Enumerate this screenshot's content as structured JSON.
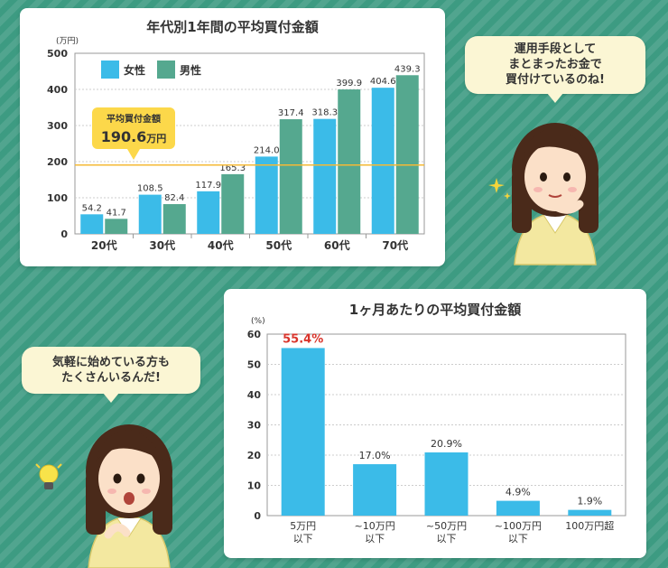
{
  "bubbles": {
    "top_right": [
      "運用手段として",
      "まとまったお金で",
      "買付けているのね!"
    ],
    "bottom_left": [
      "気軽に始めている方も",
      "たくさんいるんだ!"
    ]
  },
  "chart_data": [
    {
      "type": "bar",
      "title": "年代別1年間の平均買付金額",
      "ylabel": "(万円)",
      "categories": [
        "20代",
        "30代",
        "40代",
        "50代",
        "60代",
        "70代"
      ],
      "series": [
        {
          "name": "女性",
          "color": "#3bbbe8",
          "values": [
            54.2,
            108.5,
            117.9,
            214.0,
            318.3,
            404.6
          ]
        },
        {
          "name": "男性",
          "color": "#55a88f",
          "values": [
            41.7,
            82.4,
            165.3,
            317.4,
            399.9,
            439.3
          ]
        }
      ],
      "ylim": [
        0,
        500
      ],
      "yticks": [
        0,
        100,
        200,
        300,
        400,
        500
      ],
      "legend": "top-left",
      "reference_line": {
        "value": 190.6,
        "label": "平均買付金額",
        "value_text": "190.6",
        "unit": "万円",
        "color": "#f5b935"
      }
    },
    {
      "type": "bar",
      "title": "1ヶ月あたりの平均買付金額",
      "ylabel": "(%)",
      "categories": [
        [
          "5万円",
          "以下"
        ],
        [
          "~10万円",
          "以下"
        ],
        [
          "~50万円",
          "以下"
        ],
        [
          "~100万円",
          "以下"
        ],
        [
          "100万円超"
        ]
      ],
      "values": [
        55.4,
        17.0,
        20.9,
        4.9,
        1.9
      ],
      "labels": [
        "55.4%",
        "17.0%",
        "20.9%",
        "4.9%",
        "1.9%"
      ],
      "highlight_index": 0,
      "highlight_color": "#d9342b",
      "bar_color": "#3bbbe8",
      "ylim": [
        0,
        60
      ],
      "yticks": [
        0,
        10,
        20,
        30,
        40,
        50,
        60
      ]
    }
  ]
}
